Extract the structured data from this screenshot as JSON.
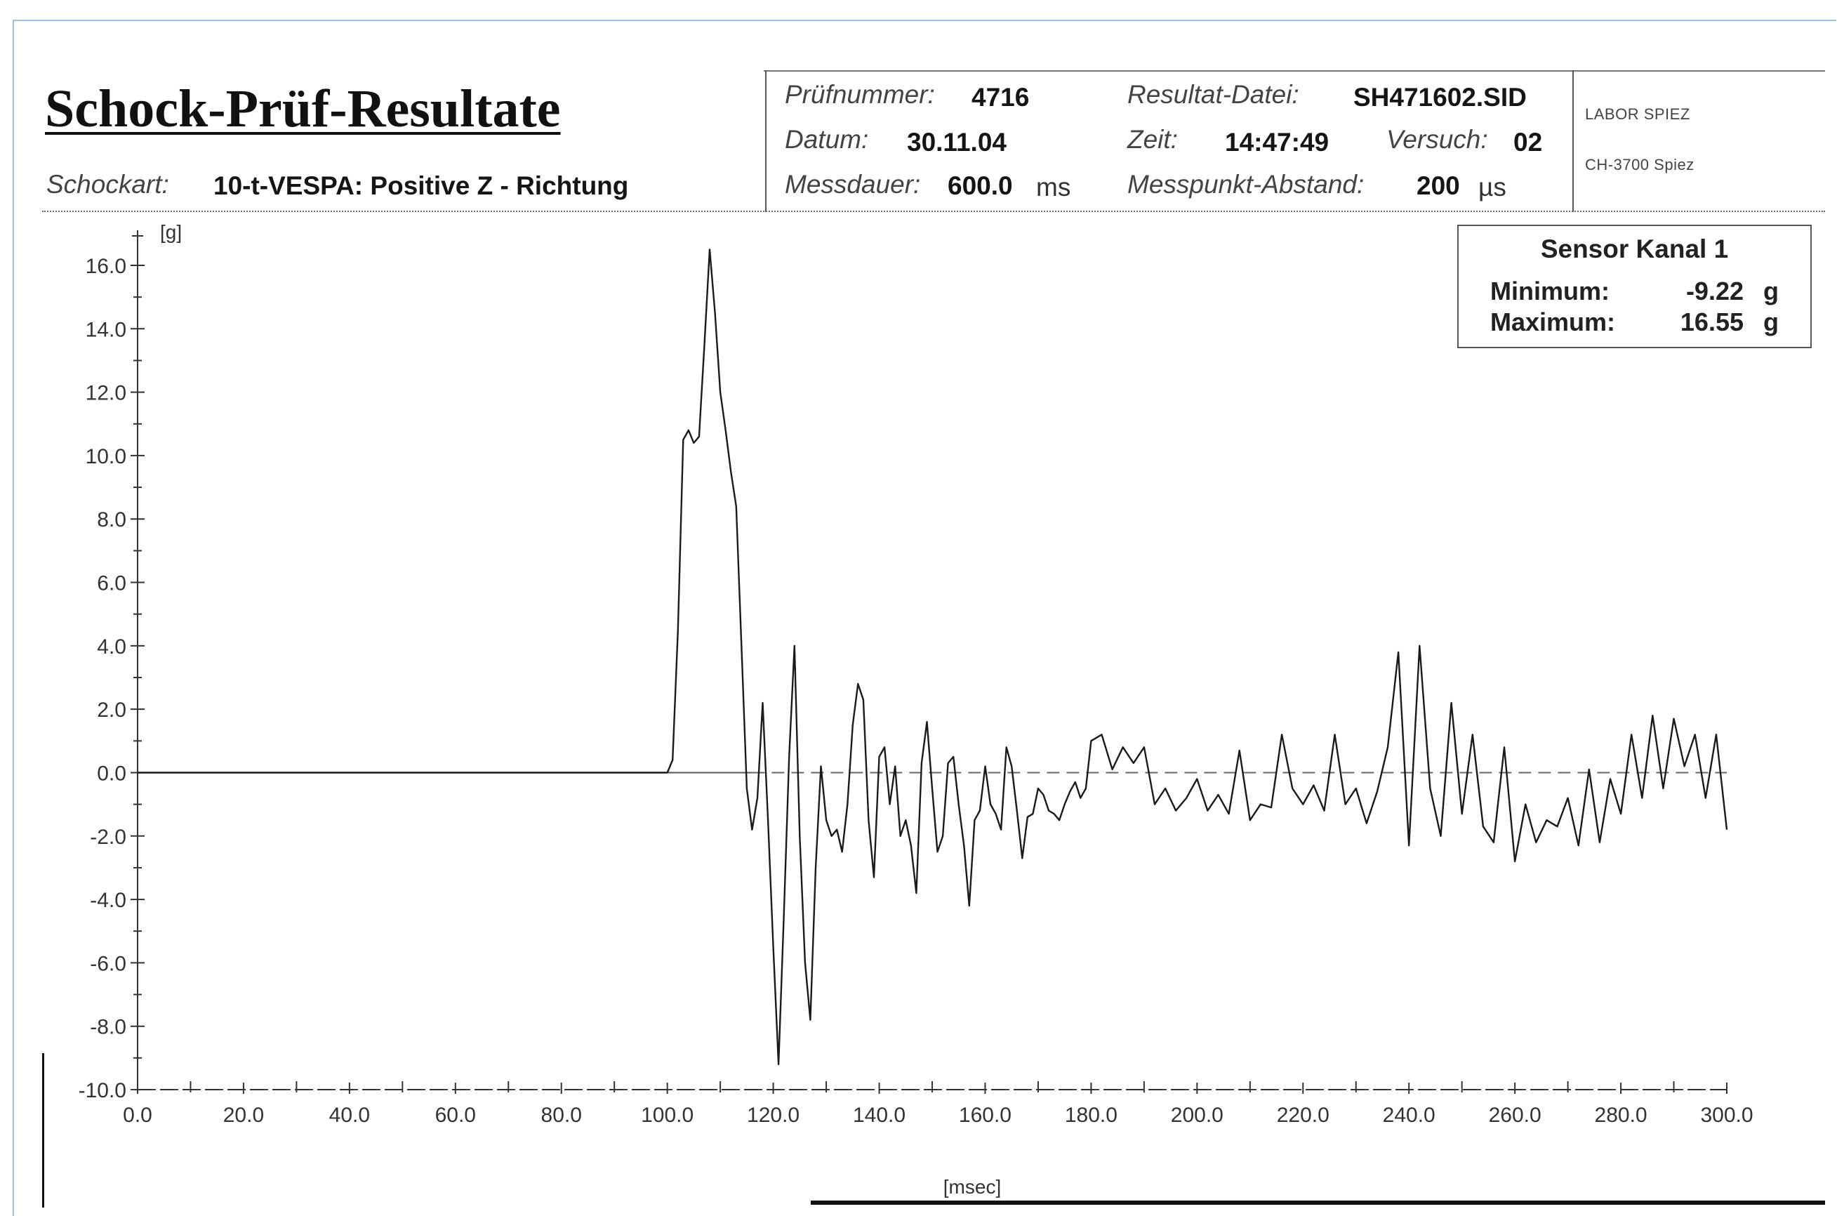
{
  "header": {
    "title": "Schock-Prüf-Resultate",
    "schockart_label": "Schockart:",
    "schockart_value": "10-t-VESPA: Positive Z - Richtung",
    "pruefnummer_label": "Prüfnummer:",
    "pruefnummer_value": "4716",
    "datum_label": "Datum:",
    "datum_value": "30.11.04",
    "messdauer_label": "Messdauer:",
    "messdauer_value": "600.0",
    "messdauer_unit": "ms",
    "resultat_label": "Resultat-Datei:",
    "resultat_value": "SH471602.SID",
    "zeit_label": "Zeit:",
    "zeit_value": "14:47:49",
    "versuch_label": "Versuch:",
    "versuch_value": "02",
    "abstand_label": "Messpunkt-Abstand:",
    "abstand_value": "200",
    "abstand_unit": "µs",
    "labor_line1": "LABOR SPIEZ",
    "labor_line2": "CH-3700 Spiez"
  },
  "sensor": {
    "title": "Sensor Kanal 1",
    "min_label": "Minimum:",
    "min_value": "-9.22",
    "max_label": "Maximum:",
    "max_value": "16.55",
    "unit": "g"
  },
  "chart_data": {
    "type": "line",
    "ylabel": "[g]",
    "xlabel": "[msec]",
    "xlim": [
      0,
      300
    ],
    "ylim": [
      -10,
      16.5
    ],
    "grid": false,
    "x_ticks": [
      "0.0",
      "20.0",
      "40.0",
      "60.0",
      "80.0",
      "100.0",
      "120.0",
      "140.0",
      "160.0",
      "180.0",
      "200.0",
      "220.0",
      "240.0",
      "260.0",
      "280.0",
      "300.0"
    ],
    "y_ticks": [
      "16.0",
      "14.0",
      "12.0",
      "10.0",
      "8.0",
      "6.0",
      "4.0",
      "2.0",
      "0.0",
      "-2.0",
      "-4.0",
      "-6.0",
      "-8.0",
      "-10.0"
    ],
    "series": [
      {
        "x": [
          0,
          20,
          40,
          60,
          80,
          100,
          101,
          102,
          103,
          104,
          105,
          106,
          107,
          108,
          109,
          110,
          111,
          112,
          113,
          114,
          115,
          116,
          117,
          118,
          119,
          120,
          121,
          122,
          123,
          124,
          125,
          126,
          127,
          128,
          129,
          130,
          131,
          132,
          133,
          134,
          135,
          136,
          137,
          138,
          139,
          140,
          141,
          142,
          143,
          144,
          145,
          146,
          147,
          148,
          149,
          150,
          151,
          152,
          153,
          154,
          155,
          156,
          157,
          158,
          159,
          160,
          161,
          162,
          163,
          164,
          165,
          166,
          167,
          168,
          169,
          170,
          171,
          172,
          173,
          174,
          175,
          176,
          177,
          178,
          179,
          180,
          182,
          184,
          186,
          188,
          190,
          192,
          194,
          196,
          198,
          200,
          202,
          204,
          206,
          208,
          210,
          212,
          214,
          216,
          218,
          220,
          222,
          224,
          226,
          228,
          230,
          232,
          234,
          236,
          238,
          240,
          242,
          244,
          246,
          248,
          250,
          252,
          254,
          256,
          258,
          260,
          262,
          264,
          266,
          268,
          270,
          272,
          274,
          276,
          278,
          280,
          282,
          284,
          286,
          288,
          290,
          292,
          294,
          296,
          298,
          300
        ],
        "y": [
          0,
          0,
          0,
          0,
          0,
          0,
          0.4,
          4.5,
          10.5,
          10.8,
          10.4,
          10.6,
          13.5,
          16.5,
          14.5,
          12,
          10.8,
          9.5,
          8.4,
          4,
          -0.5,
          -1.8,
          -0.8,
          2.2,
          -1.5,
          -5.5,
          -9.2,
          -4.5,
          0.5,
          4,
          -2,
          -6,
          -7.8,
          -3,
          0.2,
          -1.5,
          -2,
          -1.8,
          -2.5,
          -1,
          1.5,
          2.8,
          2.3,
          -1.5,
          -3.3,
          0.5,
          0.8,
          -1,
          0.2,
          -2,
          -1.5,
          -2.3,
          -3.8,
          0.3,
          1.6,
          -0.5,
          -2.5,
          -2,
          0.3,
          0.5,
          -1,
          -2.3,
          -4.2,
          -1.5,
          -1.2,
          0.2,
          -1,
          -1.3,
          -1.8,
          0.8,
          0.2,
          -1.2,
          -2.7,
          -1.4,
          -1.3,
          -0.5,
          -0.7,
          -1.2,
          -1.3,
          -1.5,
          -1,
          -0.6,
          -0.3,
          -0.8,
          -0.5,
          1,
          1.2,
          0.1,
          0.8,
          0.3,
          0.8,
          -1,
          -0.5,
          -1.2,
          -0.8,
          -0.2,
          -1.2,
          -0.7,
          -1.3,
          0.7,
          -1.5,
          -1,
          -1.1,
          1.2,
          -0.5,
          -1,
          -0.4,
          -1.2,
          1.2,
          -1,
          -0.5,
          -1.6,
          -0.6,
          0.8,
          3.8,
          -2.3,
          4,
          -0.5,
          -2,
          2.2,
          -1.3,
          1.2,
          -1.7,
          -2.2,
          0.8,
          -2.8,
          -1,
          -2.2,
          -1.5,
          -1.7,
          -0.8,
          -2.3,
          0.1,
          -2.2,
          -0.2,
          -1.3,
          1.2,
          -0.8,
          1.8,
          -0.5,
          1.7,
          0.2,
          1.2,
          -0.8,
          1.2,
          -1.8
        ]
      }
    ]
  }
}
